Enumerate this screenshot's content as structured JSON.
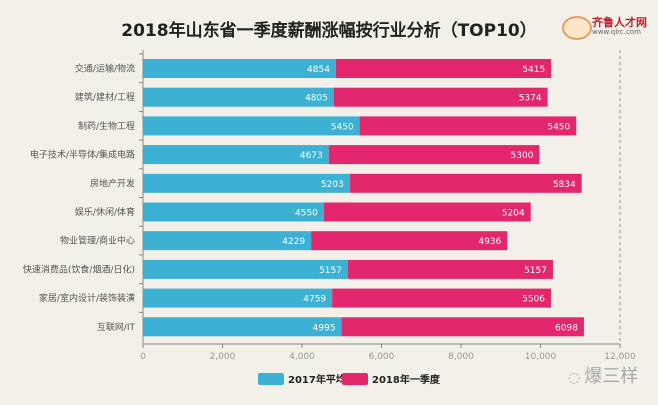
{
  "chart_data": {
    "type": "bar",
    "orientation": "horizontal",
    "stacked": true,
    "title": "2018年山东省一季度薪酬涨幅按行业分析（TOP10）",
    "categories": [
      "交通/运输/物流",
      "建筑/建材/工程",
      "制药/生物工程",
      "电子技术/半导体/集成电路",
      "房地产开发",
      "娱乐/休闲/体育",
      "物业管理/商业中心",
      "快速消费品(饮食/烟酒/日化)",
      "家居/室内设计/装饰装潢",
      "互联网/IT"
    ],
    "series": [
      {
        "name": "2017年平均",
        "color": "#3cb1d4",
        "values": [
          4854,
          4805,
          5450,
          4673,
          5203,
          4550,
          4229,
          5157,
          4759,
          4995
        ]
      },
      {
        "name": "2018年一季度",
        "color": "#e2276c",
        "values": [
          5415,
          5374,
          5450,
          5300,
          5834,
          5204,
          4936,
          5157,
          5506,
          6098
        ]
      }
    ],
    "xlim": [
      0,
      12000
    ],
    "xticks": [
      "0",
      "2,000",
      "4,000",
      "6,000",
      "8,000",
      "10,000",
      "12,000"
    ],
    "grid": false,
    "legend": "bottom"
  },
  "logo": {
    "name": "齐鲁人才网",
    "url": "www.qlrc.com"
  },
  "watermark": "爆三样"
}
